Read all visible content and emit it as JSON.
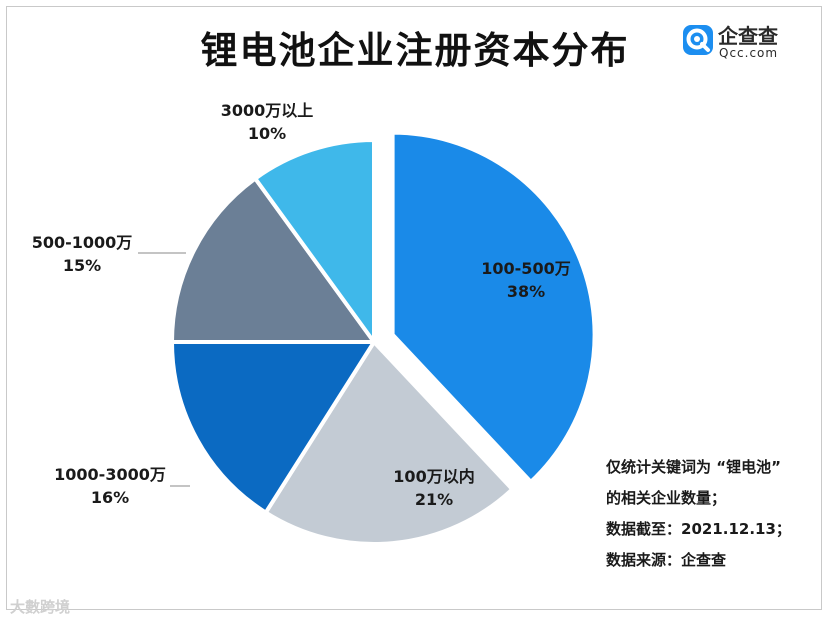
{
  "title": "锂电池企业注册资本分布",
  "logo": {
    "name": "企查查",
    "domain": "Qcc.com"
  },
  "chart_data": {
    "type": "pie",
    "title": "锂电池企业注册资本分布",
    "slices": [
      {
        "label": "100-500万",
        "value": 38,
        "pct": "38%",
        "color": "#1a8ae8",
        "exploded": true
      },
      {
        "label": "100万以内",
        "value": 21,
        "pct": "21%",
        "color": "#c3cbd4",
        "exploded": false
      },
      {
        "label": "1000-3000万",
        "value": 16,
        "pct": "16%",
        "color": "#0b6ac2",
        "exploded": false
      },
      {
        "label": "500-1000万",
        "value": 15,
        "pct": "15%",
        "color": "#6b7f96",
        "exploded": false
      },
      {
        "label": "3000万以上",
        "value": 10,
        "pct": "10%",
        "color": "#3fb8ea",
        "exploded": false
      }
    ]
  },
  "notes": [
    "仅统计关键词为 “锂电池”",
    "的相关企业数量；",
    "数据截至：2021.12.13；",
    "数据来源：企查查"
  ],
  "watermark": "大數跨境"
}
